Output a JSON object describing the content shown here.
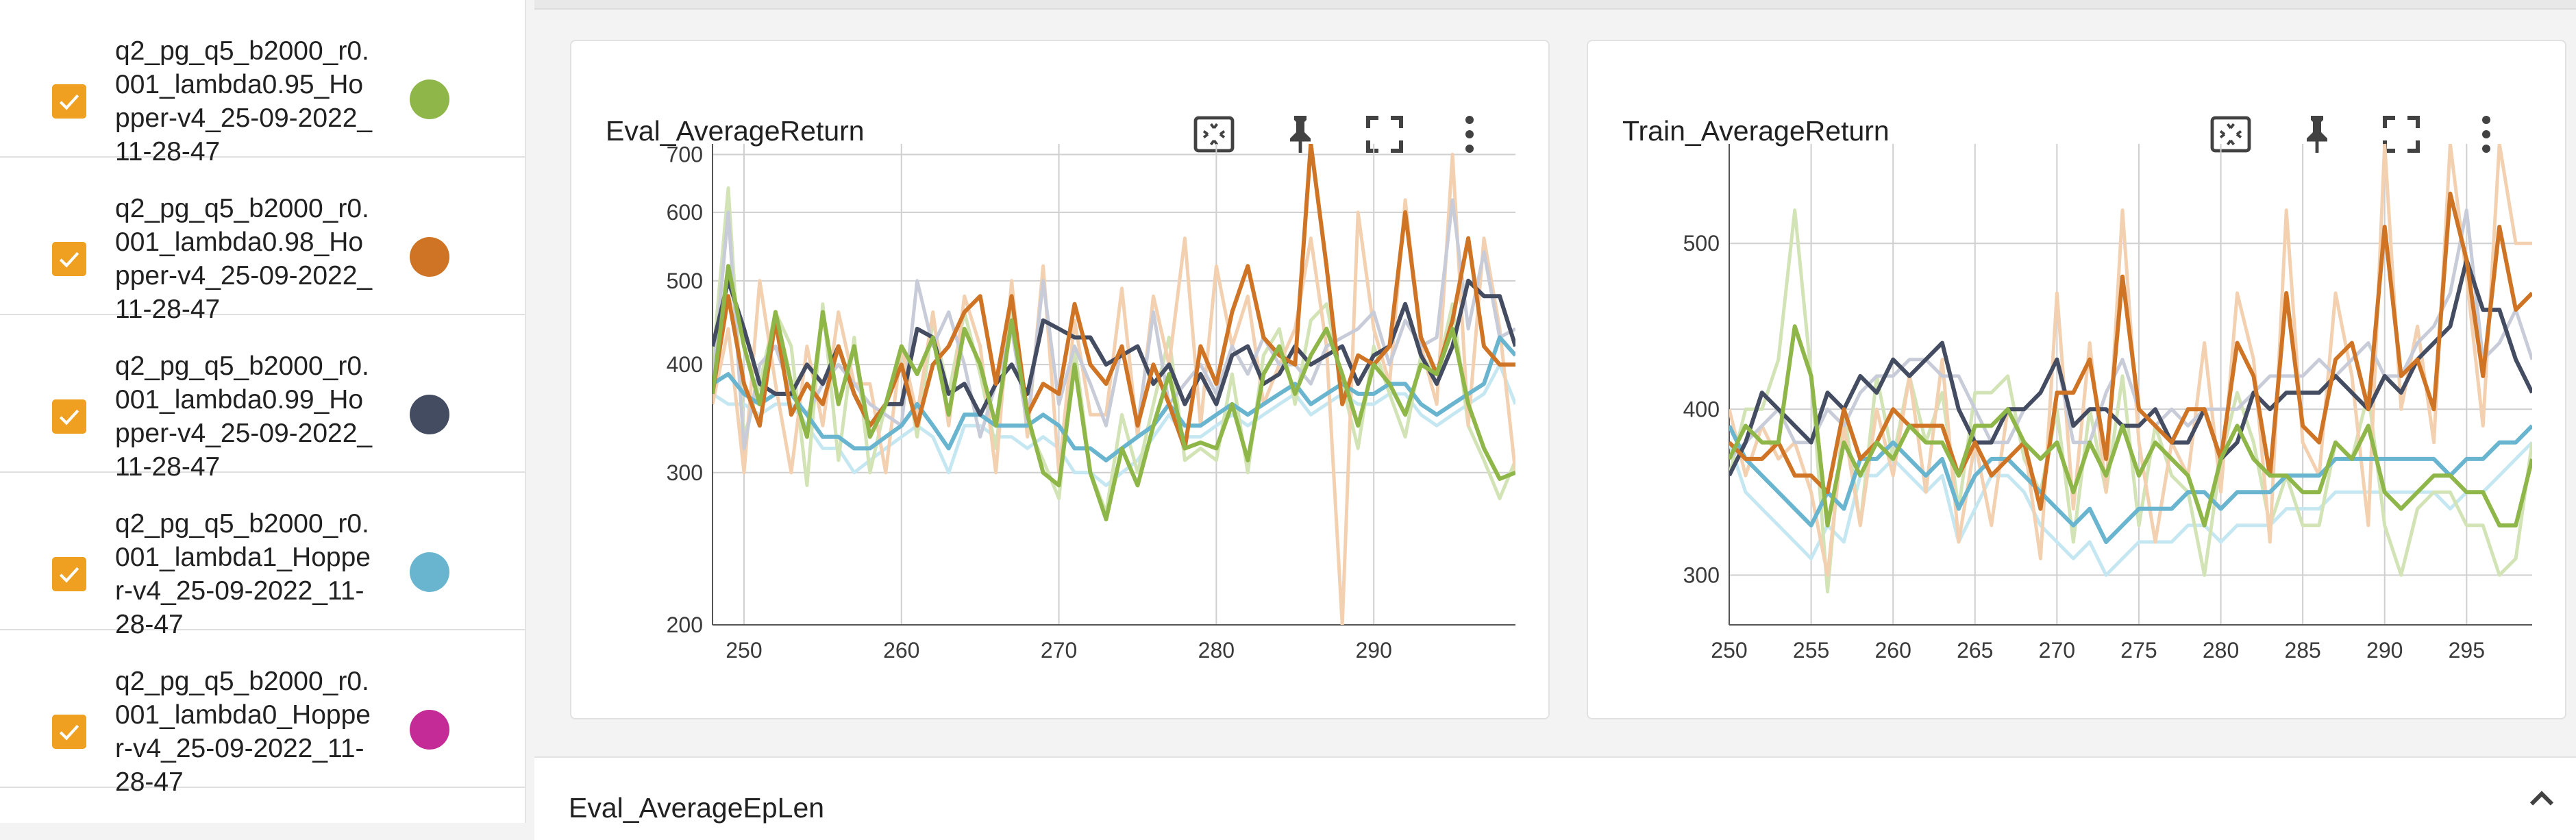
{
  "sidebar": {
    "runs": [
      {
        "name": "q2_pg_q5_b2000_r0.001_lambda0.95_Hopper-v4_25-09-2022_11-28-47",
        "color": "#8fb648",
        "checked": true
      },
      {
        "name": "q2_pg_q5_b2000_r0.001_lambda0.98_Hopper-v4_25-09-2022_11-28-47",
        "color": "#cf7425",
        "checked": true
      },
      {
        "name": "q2_pg_q5_b2000_r0.001_lambda0.99_Hopper-v4_25-09-2022_11-28-47",
        "color": "#434c61",
        "checked": true
      },
      {
        "name": "q2_pg_q5_b2000_r0.001_lambda1_Hopper-v4_25-09-2022_11-28-47",
        "color": "#69b5cf",
        "checked": true
      },
      {
        "name": "q2_pg_q5_b2000_r0.001_lambda0_Hopper-v4_25-09-2022_11-28-47",
        "color": "#c42b96",
        "checked": true
      }
    ]
  },
  "cards": [
    {
      "title": "Eval_AverageReturn",
      "toolbar": [
        "fit-domain-icon",
        "pin-icon",
        "fullscreen-icon",
        "more-vert-icon"
      ]
    },
    {
      "title": "Train_AverageReturn",
      "toolbar": [
        "fit-domain-icon",
        "pin-icon",
        "fullscreen-icon",
        "more-vert-icon"
      ]
    }
  ],
  "section": {
    "title": "Eval_AverageEpLen",
    "chevron": "chevron-up-icon"
  },
  "chart_data": [
    {
      "type": "line",
      "title": "Eval_AverageReturn",
      "y_scale": "log",
      "xlim": [
        248,
        299
      ],
      "ylim": [
        200,
        720
      ],
      "x_ticks": [
        250,
        260,
        270,
        280,
        290
      ],
      "y_ticks": [
        200,
        300,
        400,
        500,
        600,
        700
      ],
      "grid": true,
      "x": [
        248,
        249,
        250,
        251,
        252,
        253,
        254,
        255,
        256,
        257,
        258,
        259,
        260,
        261,
        262,
        263,
        264,
        265,
        266,
        267,
        268,
        269,
        270,
        271,
        272,
        273,
        274,
        275,
        276,
        277,
        278,
        279,
        280,
        281,
        282,
        283,
        284,
        285,
        286,
        287,
        288,
        289,
        290,
        291,
        292,
        293,
        294,
        295,
        296,
        297,
        298,
        299
      ],
      "series": [
        {
          "color": "#8fb648",
          "values": [
            370,
            520,
            420,
            360,
            460,
            380,
            330,
            460,
            360,
            420,
            330,
            360,
            420,
            390,
            430,
            350,
            440,
            400,
            340,
            450,
            350,
            300,
            290,
            400,
            300,
            265,
            320,
            290,
            340,
            390,
            320,
            325,
            320,
            360,
            310,
            390,
            420,
            370,
            410,
            440,
            390,
            340,
            400,
            380,
            350,
            400,
            390,
            440,
            360,
            320,
            295,
            300
          ]
        },
        {
          "color": "#cf7425",
          "values": [
            370,
            480,
            380,
            340,
            450,
            350,
            380,
            360,
            420,
            370,
            340,
            360,
            400,
            340,
            400,
            420,
            460,
            480,
            380,
            480,
            350,
            380,
            370,
            470,
            400,
            380,
            420,
            340,
            400,
            360,
            320,
            420,
            380,
            460,
            520,
            430,
            410,
            400,
            720,
            520,
            360,
            410,
            400,
            420,
            600,
            430,
            390,
            450,
            560,
            420,
            400,
            400
          ]
        },
        {
          "color": "#434c61",
          "values": [
            420,
            500,
            440,
            380,
            370,
            370,
            400,
            380,
            420,
            370,
            340,
            360,
            360,
            440,
            430,
            370,
            380,
            350,
            380,
            400,
            370,
            450,
            440,
            430,
            430,
            400,
            410,
            420,
            380,
            400,
            360,
            390,
            360,
            410,
            420,
            380,
            390,
            420,
            400,
            410,
            420,
            380,
            410,
            420,
            470,
            410,
            380,
            420,
            500,
            480,
            480,
            420
          ]
        },
        {
          "color": "#69b5cf",
          "values": [
            380,
            390,
            370,
            360,
            370,
            370,
            350,
            330,
            330,
            320,
            320,
            330,
            340,
            360,
            340,
            320,
            350,
            350,
            340,
            340,
            340,
            350,
            340,
            320,
            320,
            310,
            320,
            330,
            340,
            360,
            340,
            340,
            350,
            360,
            350,
            360,
            370,
            380,
            360,
            370,
            380,
            370,
            370,
            380,
            380,
            360,
            350,
            360,
            370,
            380,
            430,
            410
          ]
        },
        {
          "color": "#c8cbd8",
          "values": [
            380,
            600,
            320,
            400,
            420,
            370,
            350,
            380,
            400,
            380,
            360,
            350,
            340,
            500,
            420,
            460,
            400,
            330,
            380,
            440,
            340,
            500,
            360,
            420,
            380,
            340,
            420,
            340,
            460,
            360,
            380,
            400,
            370,
            420,
            390,
            430,
            400,
            400,
            380,
            420,
            430,
            440,
            460,
            400,
            450,
            420,
            430,
            620,
            440,
            540,
            430,
            440
          ]
        },
        {
          "color": "#f3d0b0",
          "values": [
            360,
            440,
            300,
            500,
            380,
            300,
            420,
            340,
            460,
            380,
            380,
            300,
            420,
            350,
            460,
            340,
            480,
            420,
            300,
            500,
            330,
            520,
            300,
            450,
            350,
            350,
            490,
            330,
            480,
            400,
            560,
            340,
            520,
            420,
            480,
            360,
            400,
            440,
            560,
            420,
            200,
            600,
            440,
            380,
            620,
            420,
            360,
            700,
            340,
            560,
            440,
            300
          ]
        },
        {
          "color": "#d2e3b5",
          "values": [
            400,
            640,
            330,
            380,
            460,
            420,
            290,
            470,
            310,
            430,
            300,
            360,
            420,
            330,
            450,
            370,
            460,
            390,
            320,
            460,
            340,
            310,
            280,
            420,
            300,
            270,
            350,
            300,
            360,
            430,
            310,
            320,
            310,
            390,
            300,
            410,
            440,
            360,
            450,
            470,
            380,
            320,
            420,
            370,
            330,
            410,
            390,
            470,
            340,
            310,
            280,
            310
          ]
        },
        {
          "color": "#c5e7f1",
          "values": [
            370,
            360,
            360,
            350,
            360,
            360,
            340,
            320,
            320,
            300,
            310,
            320,
            330,
            340,
            330,
            300,
            340,
            340,
            330,
            330,
            320,
            330,
            320,
            300,
            300,
            290,
            300,
            310,
            330,
            350,
            330,
            330,
            340,
            350,
            340,
            350,
            360,
            370,
            350,
            360,
            370,
            360,
            360,
            370,
            370,
            350,
            340,
            350,
            360,
            370,
            400,
            360
          ]
        }
      ]
    },
    {
      "type": "line",
      "title": "Train_AverageReturn",
      "xlim": [
        250,
        299
      ],
      "ylim": [
        270,
        560
      ],
      "x_ticks": [
        250,
        255,
        260,
        265,
        270,
        275,
        280,
        285,
        290,
        295
      ],
      "y_ticks": [
        300,
        400,
        500
      ],
      "grid": true,
      "x": [
        250,
        251,
        252,
        253,
        254,
        255,
        256,
        257,
        258,
        259,
        260,
        261,
        262,
        263,
        264,
        265,
        266,
        267,
        268,
        269,
        270,
        271,
        272,
        273,
        274,
        275,
        276,
        277,
        278,
        279,
        280,
        281,
        282,
        283,
        284,
        285,
        286,
        287,
        288,
        289,
        290,
        291,
        292,
        293,
        294,
        295,
        296,
        297,
        298,
        299
      ],
      "series": [
        {
          "color": "#8fb648",
          "values": [
            370,
            390,
            380,
            380,
            450,
            420,
            330,
            380,
            360,
            380,
            370,
            390,
            380,
            380,
            360,
            390,
            390,
            400,
            380,
            370,
            380,
            350,
            380,
            360,
            390,
            360,
            380,
            370,
            360,
            330,
            370,
            390,
            370,
            360,
            360,
            350,
            350,
            380,
            370,
            390,
            350,
            340,
            350,
            360,
            360,
            350,
            350,
            330,
            330,
            370
          ]
        },
        {
          "color": "#cf7425",
          "values": [
            380,
            370,
            370,
            380,
            360,
            360,
            350,
            400,
            370,
            380,
            400,
            390,
            390,
            390,
            360,
            380,
            360,
            370,
            380,
            340,
            410,
            410,
            430,
            370,
            480,
            400,
            390,
            380,
            400,
            400,
            370,
            440,
            420,
            360,
            470,
            390,
            380,
            430,
            440,
            400,
            510,
            420,
            430,
            400,
            530,
            490,
            420,
            510,
            460,
            470
          ]
        },
        {
          "color": "#434c61",
          "values": [
            360,
            380,
            410,
            400,
            390,
            380,
            410,
            400,
            420,
            410,
            430,
            420,
            430,
            440,
            400,
            380,
            380,
            400,
            400,
            410,
            430,
            390,
            400,
            400,
            390,
            390,
            400,
            380,
            380,
            400,
            370,
            380,
            410,
            400,
            410,
            410,
            410,
            420,
            410,
            400,
            420,
            410,
            430,
            440,
            450,
            490,
            460,
            460,
            430,
            410
          ]
        },
        {
          "color": "#69b5cf",
          "values": [
            390,
            370,
            360,
            350,
            340,
            330,
            350,
            340,
            370,
            370,
            380,
            370,
            360,
            370,
            340,
            360,
            370,
            370,
            360,
            350,
            340,
            330,
            340,
            320,
            330,
            340,
            340,
            340,
            350,
            350,
            340,
            350,
            350,
            350,
            360,
            360,
            360,
            370,
            370,
            370,
            370,
            370,
            370,
            370,
            360,
            370,
            370,
            380,
            380,
            390
          ]
        },
        {
          "color": "#c8cbd8",
          "values": [
            370,
            380,
            390,
            400,
            380,
            380,
            400,
            390,
            410,
            420,
            420,
            430,
            430,
            420,
            420,
            400,
            380,
            380,
            400,
            410,
            430,
            380,
            380,
            410,
            430,
            400,
            390,
            400,
            390,
            400,
            400,
            400,
            410,
            420,
            420,
            420,
            430,
            420,
            430,
            440,
            420,
            420,
            440,
            450,
            470,
            520,
            430,
            440,
            460,
            430
          ]
        },
        {
          "color": "#f3d0b0",
          "values": [
            400,
            360,
            390,
            370,
            380,
            350,
            300,
            390,
            330,
            400,
            360,
            420,
            350,
            430,
            320,
            380,
            330,
            400,
            380,
            310,
            470,
            340,
            440,
            350,
            520,
            380,
            320,
            380,
            360,
            440,
            350,
            470,
            430,
            320,
            520,
            380,
            360,
            470,
            420,
            330,
            560,
            400,
            450,
            380,
            560,
            480,
            390,
            560,
            500,
            500
          ]
        },
        {
          "color": "#d2e3b5",
          "values": [
            360,
            400,
            400,
            430,
            520,
            420,
            290,
            400,
            330,
            420,
            370,
            420,
            380,
            410,
            340,
            410,
            410,
            420,
            370,
            350,
            400,
            320,
            400,
            350,
            420,
            330,
            390,
            360,
            350,
            300,
            370,
            410,
            380,
            330,
            360,
            330,
            330,
            380,
            370,
            410,
            330,
            300,
            340,
            350,
            350,
            330,
            330,
            300,
            310,
            380
          ]
        },
        {
          "color": "#c5e7f1",
          "values": [
            380,
            350,
            340,
            330,
            320,
            310,
            330,
            320,
            360,
            360,
            370,
            360,
            350,
            360,
            320,
            340,
            360,
            360,
            350,
            330,
            320,
            310,
            320,
            300,
            310,
            320,
            320,
            320,
            330,
            330,
            320,
            330,
            330,
            330,
            340,
            340,
            340,
            350,
            350,
            350,
            350,
            350,
            350,
            350,
            340,
            350,
            350,
            360,
            370,
            380
          ]
        }
      ]
    }
  ]
}
